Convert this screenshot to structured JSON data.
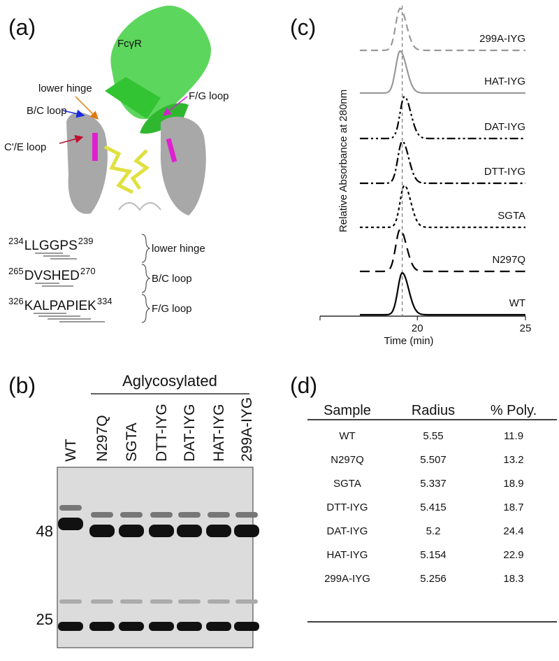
{
  "panel_a": {
    "label": "(a)",
    "receptor": "FcγR",
    "callouts": [
      "lower hinge",
      "B/C loop",
      "C'/E loop",
      "F/G loop"
    ],
    "sequences": [
      {
        "start": "234",
        "residues": "LLGGPS",
        "end": "239",
        "region": "lower hinge"
      },
      {
        "start": "265",
        "residues": "DVSHED",
        "end": "270",
        "region": "B/C loop"
      },
      {
        "start": "326",
        "residues": "KALPAPIEK",
        "end": "334",
        "region": "F/G loop"
      }
    ]
  },
  "panel_b": {
    "label": "(b)",
    "group": "Aglycosylated",
    "lanes": [
      "WT",
      "N297Q",
      "SGTA",
      "DTT-IYG",
      "DAT-IYG",
      "HAT-IYG",
      "299A-IYG"
    ],
    "markers": [
      "48",
      "25"
    ]
  },
  "chart_data": {
    "type": "line",
    "panel_label": "(c)",
    "x_label": "Time (min)",
    "y_label": "Relative Absorbance at 280nm",
    "xlim": [
      15.5,
      25
    ],
    "xticks": [
      20,
      25
    ],
    "reference_line": 19.3,
    "series": [
      {
        "name": "299A-IYG",
        "color": "#999999",
        "dash": "10,6",
        "peak": 19.2
      },
      {
        "name": "HAT-IYG",
        "color": "#999999",
        "dash": "none",
        "peak": 19.2
      },
      {
        "name": "DAT-IYG",
        "color": "#000000",
        "dash": "12,4,3,4,3,4",
        "peak": 19.4
      },
      {
        "name": "DTT-IYG",
        "color": "#000000",
        "dash": "12,4,3,4",
        "peak": 19.3
      },
      {
        "name": "SGTA",
        "color": "#000000",
        "dash": "4,4",
        "peak": 19.4
      },
      {
        "name": "N297Q",
        "color": "#000000",
        "dash": "14,8",
        "peak": 19.2
      },
      {
        "name": "WT",
        "color": "#000000",
        "dash": "none",
        "peak": 19.3
      }
    ]
  },
  "panel_d": {
    "label": "(d)",
    "table": {
      "header": [
        "Sample",
        "Radius",
        "% Poly."
      ],
      "rows": [
        [
          "WT",
          5.55,
          11.9
        ],
        [
          "N297Q",
          5.507,
          13.2
        ],
        [
          "SGTA",
          5.337,
          18.9
        ],
        [
          "DTT-IYG",
          5.415,
          18.7
        ],
        [
          "DAT-IYG",
          5.2,
          24.4
        ],
        [
          "HAT-IYG",
          5.154,
          22.9
        ],
        [
          "299A-IYG",
          5.256,
          18.3
        ]
      ]
    }
  }
}
